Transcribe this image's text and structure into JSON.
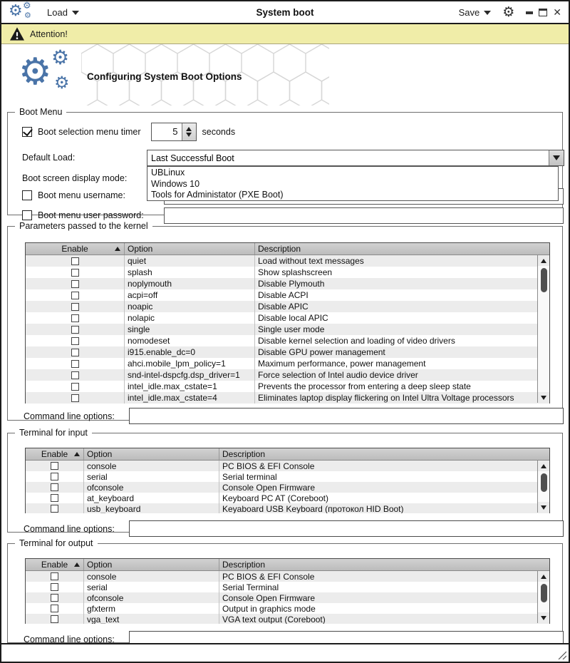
{
  "colors": {
    "accent_blue": "#4a74a8",
    "attention_bg": "#f0eda8",
    "table_header_bg": "#c6c6c6",
    "row_alt_bg": "#ececec"
  },
  "titlebar": {
    "load": "Load",
    "title": "System boot",
    "save": "Save",
    "close_glyph": "✕",
    "gear_glyph": "⚙"
  },
  "attention": {
    "label": "Attention!"
  },
  "banner": {
    "heading": "Configuring System Boot Options"
  },
  "boot_menu": {
    "legend": "Boot Menu",
    "timer": {
      "label": "Boot selection menu timer",
      "value": "5",
      "unit": "seconds",
      "checked": true
    },
    "default_load": {
      "label": "Default Load:",
      "value": "Last Successful Boot"
    },
    "display_mode": {
      "label": "Boot screen display mode:"
    },
    "dropdown_items": [
      "UBLinux",
      "Windows 10",
      "Tools for Administator (PXE Boot)"
    ],
    "username": {
      "label": "Boot menu username:",
      "value": "",
      "checked": false
    },
    "password": {
      "label": "Boot menu user password:",
      "value": "",
      "checked": false
    }
  },
  "kernel_params": {
    "legend": "Parameters passed to the kernel",
    "columns": [
      "Enable",
      "Option",
      "Description"
    ],
    "rows": [
      [
        "quiet",
        "Load without text messages"
      ],
      [
        "splash",
        "Show splashscreen"
      ],
      [
        "noplymouth",
        "Disable Plymouth"
      ],
      [
        "acpi=off",
        "Disable ACPI"
      ],
      [
        "noapic",
        "Disable APIC"
      ],
      [
        "nolapic",
        "Disable local APIC"
      ],
      [
        "single",
        "Single user mode"
      ],
      [
        "nomodeset",
        "Disable kernel selection and loading of video drivers"
      ],
      [
        "i915.enable_dc=0",
        "Disable GPU power management"
      ],
      [
        "ahci.mobile_lpm_policy=1",
        "Maximum performance, power management"
      ],
      [
        "snd-intel-dspcfg.dsp_driver=1",
        "Force selection of Intel audio device driver"
      ],
      [
        "intel_idle.max_cstate=1",
        "Prevents the processor from entering a deep sleep state"
      ],
      [
        "intel_idle.max_cstate=4",
        "Eliminates laptop display flickering on Intel Ultra Voltage processors"
      ]
    ],
    "cmdline_label": "Command line options:",
    "cmdline_value": ""
  },
  "terminal_input": {
    "legend": "Terminal for input",
    "columns": [
      "Enable",
      "Option",
      "Description"
    ],
    "rows": [
      [
        "console",
        "PC BIOS & EFI Console"
      ],
      [
        "serial",
        "Serial terminal"
      ],
      [
        "ofconsole",
        "Console Open Firmware"
      ],
      [
        "at_keyboard",
        "Keyboard PC AT (Coreboot)"
      ],
      [
        "usb_keyboard",
        "Keyaboard USB Keyboard (протокол HID Boot)"
      ]
    ],
    "cmdline_label": "Command line options:",
    "cmdline_value": ""
  },
  "terminal_output": {
    "legend": "Terminal for output",
    "columns": [
      "Enable",
      "Option",
      "Description"
    ],
    "rows": [
      [
        "console",
        "PC BIOS & EFI Console"
      ],
      [
        "serial",
        "Serial Terminal"
      ],
      [
        "ofconsole",
        "Console Open Firmware"
      ],
      [
        "gfxterm",
        "Output in graphics mode"
      ],
      [
        "vga_text",
        "VGA text output (Coreboot)"
      ]
    ],
    "cmdline_label": "Command line options:",
    "cmdline_value": ""
  }
}
